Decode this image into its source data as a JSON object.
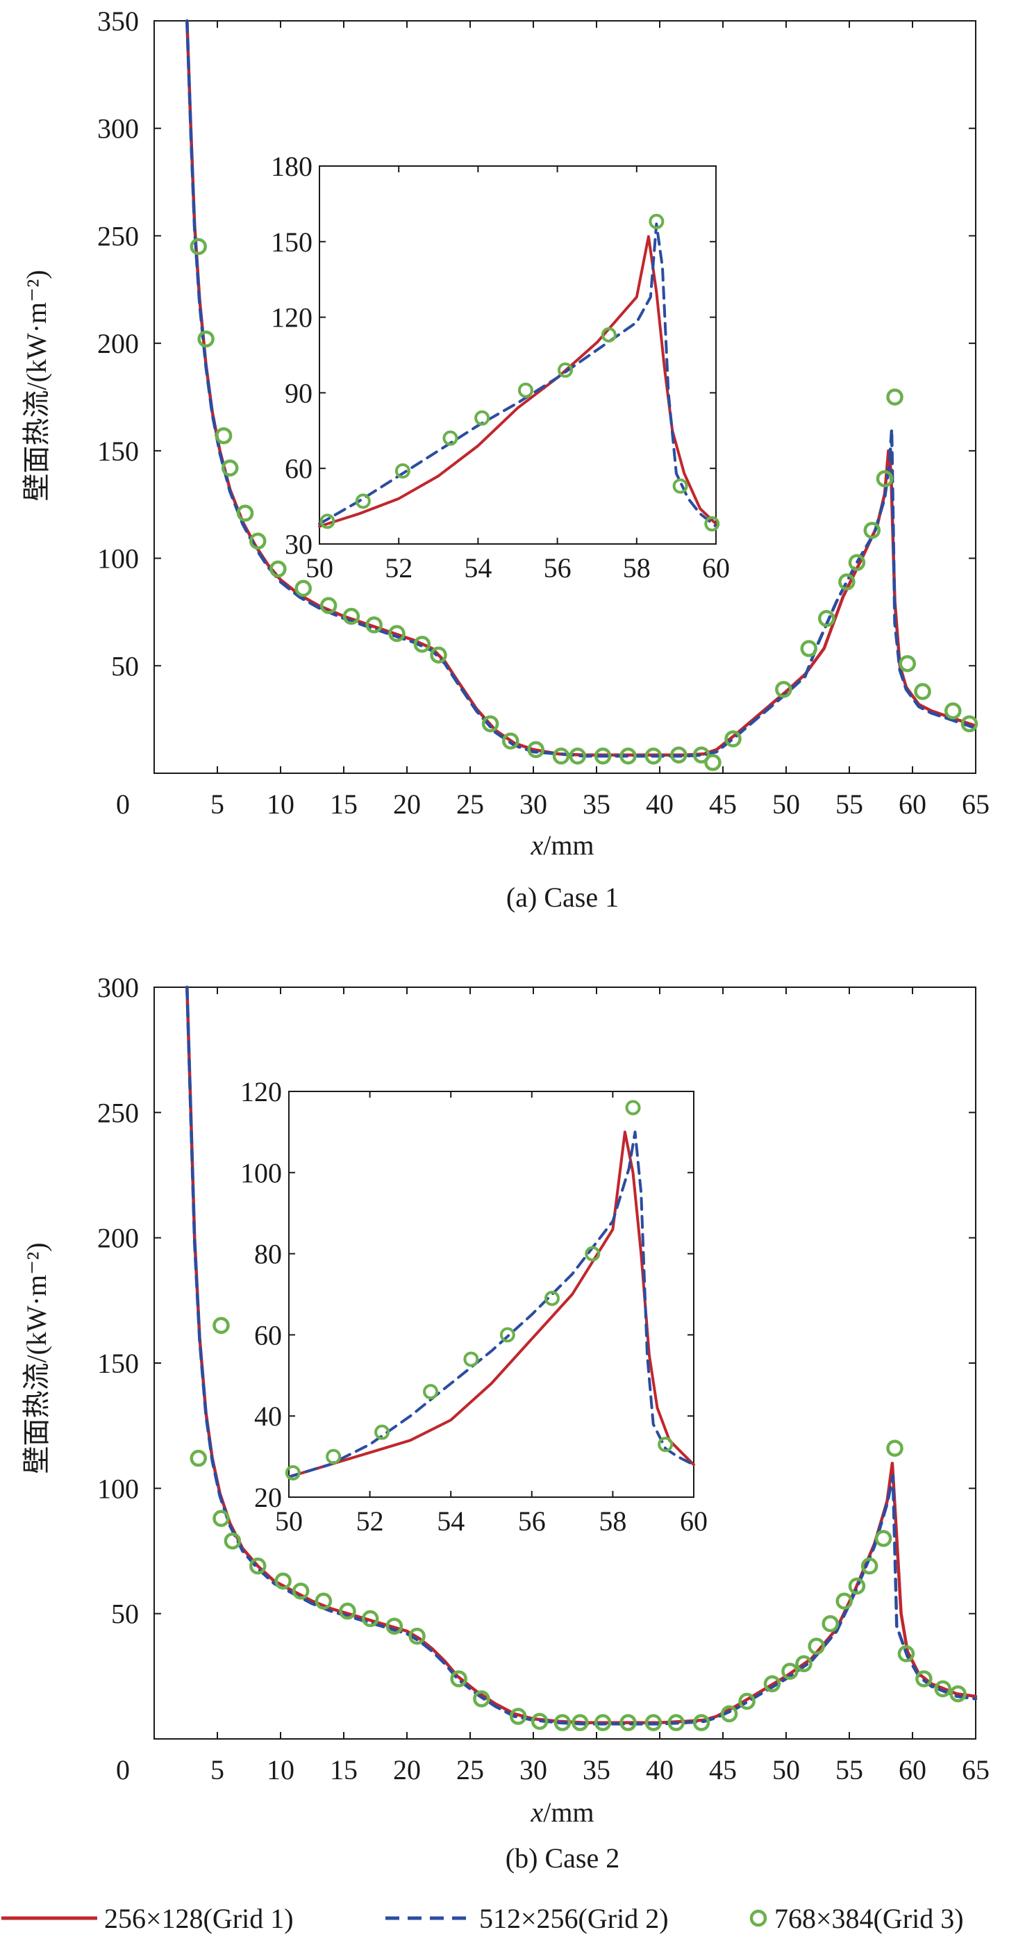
{
  "figure": {
    "y_axis_label": "壁面热流/(kW·m⁻²)",
    "x_axis_label": "x/mm",
    "legend": [
      {
        "label": "256×128(Grid 1)",
        "series": "Grid 1"
      },
      {
        "label": "512×256(Grid 2)",
        "series": "Grid 2"
      },
      {
        "label": "768×384(Grid 3)",
        "series": "Grid 3"
      }
    ],
    "colors": {
      "grid1": "#c0272d",
      "grid2": "#2b4da0",
      "grid3": "#6ab04c",
      "axis": "#1a1a1a"
    }
  },
  "chart_data": [
    {
      "type": "line",
      "id": "case1",
      "title": "(a) Case 1",
      "xlabel": "x/mm",
      "ylabel": "壁面热流/(kW·m⁻²)",
      "xlim": [
        0,
        65
      ],
      "ylim": [
        0,
        350
      ],
      "xticks": [
        0,
        5,
        10,
        15,
        20,
        25,
        30,
        35,
        40,
        45,
        50,
        55,
        60,
        65
      ],
      "yticks": [
        50,
        100,
        150,
        200,
        250,
        300,
        350
      ],
      "series": [
        {
          "name": "256×128(Grid 1)",
          "style": "solid",
          "x": [
            2.6,
            2.9,
            3.2,
            3.6,
            4.1,
            4.6,
            5.2,
            6,
            7,
            8,
            9,
            10,
            11.5,
            13,
            15,
            17,
            19,
            20.5,
            22,
            23,
            24,
            25.5,
            27,
            28.5,
            30,
            32,
            34,
            36,
            38,
            40,
            42,
            43.5,
            44.5,
            46,
            48,
            50,
            51.5,
            53,
            54.5,
            56,
            57.2,
            57.8,
            58.1,
            58.3,
            58.6,
            59,
            59.5,
            60.5,
            61.5,
            62.5,
            63.5,
            64.5,
            65
          ],
          "y": [
            350,
            300,
            255,
            220,
            190,
            168,
            150,
            132,
            117,
            106,
            97,
            90,
            83,
            78,
            73,
            69,
            65,
            62,
            58,
            52,
            43,
            30,
            20,
            14,
            11,
            9,
            8.5,
            8.5,
            8.5,
            8.5,
            8.5,
            9,
            11,
            18,
            28,
            38,
            46,
            58,
            82,
            100,
            115,
            130,
            150,
            140,
            80,
            50,
            40,
            32,
            29,
            27,
            25,
            23,
            22
          ]
        },
        {
          "name": "512×256(Grid 2)",
          "style": "dashed",
          "x": [
            2.6,
            2.9,
            3.2,
            3.6,
            4.1,
            4.6,
            5.2,
            6,
            7,
            8,
            9,
            10,
            11.5,
            13,
            15,
            17,
            19,
            20.5,
            22,
            23,
            24,
            25.5,
            27,
            28.5,
            30,
            32,
            34,
            36,
            38,
            40,
            42,
            43.5,
            44.5,
            46,
            48,
            50,
            51.5,
            52.5,
            54,
            55.5,
            57,
            57.8,
            58.2,
            58.35,
            58.6,
            59,
            59.5,
            60.5,
            61.5,
            62.5,
            63.5,
            64.5,
            65
          ],
          "y": [
            350,
            298,
            253,
            218,
            189,
            167,
            149,
            131,
            116,
            105,
            96,
            89,
            82,
            77,
            72,
            68,
            64,
            61,
            57,
            51,
            42,
            29,
            19,
            13,
            10,
            9,
            8,
            8,
            8,
            8,
            8,
            8.5,
            10,
            17,
            27,
            37,
            45,
            60,
            80,
            97,
            112,
            128,
            145,
            160,
            70,
            48,
            39,
            31,
            28,
            26,
            24,
            22,
            21
          ]
        },
        {
          "name": "768×384(Grid 3)",
          "style": "markers",
          "x": [
            3.5,
            4.1,
            5.5,
            6.0,
            7.2,
            8.2,
            9.8,
            11.8,
            13.8,
            15.6,
            17.4,
            19.2,
            21.2,
            22.5,
            26.6,
            28.2,
            30.2,
            32.2,
            33.5,
            35.5,
            37.5,
            39.5,
            41.5,
            43.3,
            44.2,
            45.8,
            49.8,
            51.8,
            53.2,
            54.8,
            55.6,
            56.8,
            57.8,
            58.6,
            59.6,
            60.8,
            63.2,
            64.5
          ],
          "y": [
            245,
            202,
            157,
            142,
            121,
            108,
            95,
            86,
            78,
            73,
            69,
            65,
            60,
            55,
            23,
            15,
            11,
            8,
            8,
            8,
            8,
            8,
            8.5,
            8.5,
            5,
            16,
            39,
            58,
            72,
            89,
            98,
            113,
            137,
            175,
            51,
            38,
            29,
            23
          ]
        }
      ],
      "inset": {
        "xlim": [
          50,
          60
        ],
        "ylim": [
          30,
          180
        ],
        "xticks": [
          50,
          52,
          54,
          56,
          58,
          60
        ],
        "yticks": [
          30,
          60,
          90,
          120,
          150,
          180
        ],
        "series": [
          {
            "name": "256×128(Grid 1)",
            "style": "solid",
            "x": [
              50,
              51,
              52,
              53,
              54,
              55,
              56,
              57,
              58,
              58.3,
              58.5,
              58.7,
              58.9,
              59.2,
              59.6,
              60
            ],
            "y": [
              37,
              42,
              48,
              57,
              69,
              84,
              96,
              110,
              128,
              152,
              130,
              100,
              75,
              58,
              44,
              38
            ]
          },
          {
            "name": "512×256(Grid 2)",
            "style": "dashed",
            "x": [
              50,
              51,
              52,
              53,
              54,
              55,
              56,
              57,
              58,
              58.35,
              58.5,
              58.65,
              58.8,
              59.0,
              59.3,
              59.6,
              60
            ],
            "y": [
              38,
              47,
              57,
              67,
              77,
              86,
              96,
              107,
              118,
              128,
              157,
              140,
              90,
              58,
              48,
              42,
              37
            ]
          },
          {
            "name": "768×384(Grid 3)",
            "style": "markers",
            "x": [
              50.2,
              51.1,
              52.1,
              53.3,
              54.1,
              55.2,
              56.2,
              57.3,
              58.5,
              59.1,
              59.9
            ],
            "y": [
              39,
              47,
              59,
              72,
              80,
              91,
              99,
              113,
              158,
              53,
              38
            ]
          }
        ]
      }
    },
    {
      "type": "line",
      "id": "case2",
      "title": "(b) Case 2",
      "xlabel": "x/mm",
      "ylabel": "壁面热流/(kW·m⁻²)",
      "xlim": [
        0,
        65
      ],
      "ylim": [
        0,
        300
      ],
      "xticks": [
        0,
        5,
        10,
        15,
        20,
        25,
        30,
        35,
        40,
        45,
        50,
        55,
        60,
        65
      ],
      "yticks": [
        50,
        100,
        150,
        200,
        250,
        300
      ],
      "series": [
        {
          "name": "256×128(Grid 1)",
          "style": "solid",
          "x": [
            2.6,
            2.9,
            3.2,
            3.6,
            4.1,
            4.6,
            5.2,
            6,
            7,
            8.2,
            9.5,
            11,
            12.5,
            14,
            16,
            18,
            20,
            21,
            22,
            23,
            24,
            25.5,
            27,
            28.5,
            30,
            32,
            34,
            36,
            38,
            40,
            42,
            43.5,
            44.5,
            46,
            48,
            50,
            52,
            54,
            55.5,
            57,
            58,
            58.4,
            58.7,
            59.1,
            59.6,
            60.5,
            61.5,
            62.5,
            63.5,
            65
          ],
          "y": [
            300,
            250,
            200,
            160,
            130,
            112,
            98,
            86,
            76,
            69,
            63,
            59,
            55,
            52,
            49,
            46,
            43,
            40,
            36,
            31,
            25,
            19,
            14,
            10,
            8,
            7,
            6.5,
            6.5,
            6.5,
            6.5,
            7,
            7.5,
            9,
            13,
            19,
            25,
            32,
            44,
            60,
            78,
            95,
            110,
            85,
            50,
            35,
            26,
            22,
            20,
            18,
            17
          ]
        },
        {
          "name": "512×256(Grid 2)",
          "style": "dashed",
          "x": [
            2.6,
            2.9,
            3.2,
            3.6,
            4.1,
            4.6,
            5.2,
            6,
            7,
            8.2,
            9.5,
            11,
            12.5,
            14,
            16,
            18,
            20,
            21,
            22,
            23,
            24,
            25.5,
            27,
            28.5,
            30,
            32,
            34,
            36,
            38,
            40,
            42,
            43.5,
            44.5,
            46,
            48,
            50,
            52,
            54,
            55.5,
            57,
            58,
            58.45,
            58.75,
            59.1,
            59.6,
            60.5,
            61.5,
            62.5,
            63.5,
            65
          ],
          "y": [
            300,
            248,
            198,
            159,
            129,
            111,
            97,
            85,
            75,
            68,
            62,
            58,
            54,
            51,
            48,
            45,
            42,
            39,
            35,
            30,
            24,
            18,
            13,
            9,
            7.5,
            6.5,
            6,
            6,
            6,
            6,
            6.5,
            7,
            8.5,
            12,
            18,
            24,
            31,
            43,
            59,
            77,
            94,
            105,
            45,
            40,
            33,
            25,
            21,
            19,
            17,
            16
          ]
        },
        {
          "name": "768×384(Grid 3)",
          "style": "markers",
          "x": [
            3.5,
            5.3,
            5.3,
            6.2,
            8.2,
            10.2,
            11.6,
            13.4,
            15.3,
            17.1,
            19.0,
            20.8,
            24.1,
            25.9,
            28.8,
            30.5,
            32.3,
            33.7,
            35.5,
            37.5,
            39.5,
            41.3,
            43.3,
            45.5,
            46.9,
            48.9,
            50.3,
            51.4,
            52.4,
            53.5,
            54.6,
            55.6,
            56.6,
            57.7,
            58.6,
            59.5,
            60.9,
            62.4,
            63.6
          ],
          "y": [
            112,
            165,
            88,
            79,
            69,
            63,
            59,
            55,
            51,
            48,
            45,
            41,
            24,
            16,
            9,
            7,
            6.5,
            6.5,
            6.5,
            6.5,
            6.5,
            6.5,
            6.5,
            10,
            15,
            22,
            27,
            30,
            37,
            46,
            55,
            61,
            69,
            80,
            116,
            34,
            24,
            20,
            18
          ]
        }
      ],
      "inset": {
        "xlim": [
          50,
          60
        ],
        "ylim": [
          20,
          120
        ],
        "xticks": [
          50,
          52,
          54,
          56,
          58,
          60
        ],
        "yticks": [
          20,
          40,
          60,
          80,
          100,
          120
        ],
        "series": [
          {
            "name": "256×128(Grid 1)",
            "style": "solid",
            "x": [
              50,
              51,
              52,
              53,
              54,
              55,
              56,
              57,
              58,
              58.3,
              58.5,
              58.7,
              58.9,
              59.1,
              59.4,
              59.7,
              60
            ],
            "y": [
              25,
              28,
              31,
              34,
              39,
              48,
              59,
              70,
              86,
              110,
              100,
              80,
              55,
              42,
              34,
              31,
              28
            ]
          },
          {
            "name": "512×256(Grid 2)",
            "style": "dashed",
            "x": [
              50,
              51,
              52,
              53,
              54,
              55,
              56,
              57,
              58,
              58.4,
              58.55,
              58.7,
              58.85,
              59.0,
              59.3,
              59.6,
              60
            ],
            "y": [
              25,
              28,
              33,
              40,
              48,
              56,
              65,
              75,
              88,
              101,
              110,
              95,
              55,
              38,
              32,
              30,
              28
            ]
          },
          {
            "name": "768×384(Grid 3)",
            "style": "markers",
            "x": [
              50.1,
              51.1,
              52.3,
              53.5,
              54.5,
              55.4,
              56.5,
              57.5,
              58.5,
              59.3
            ],
            "y": [
              26,
              30,
              36,
              46,
              54,
              60,
              69,
              80,
              116,
              33
            ]
          }
        ]
      }
    }
  ]
}
